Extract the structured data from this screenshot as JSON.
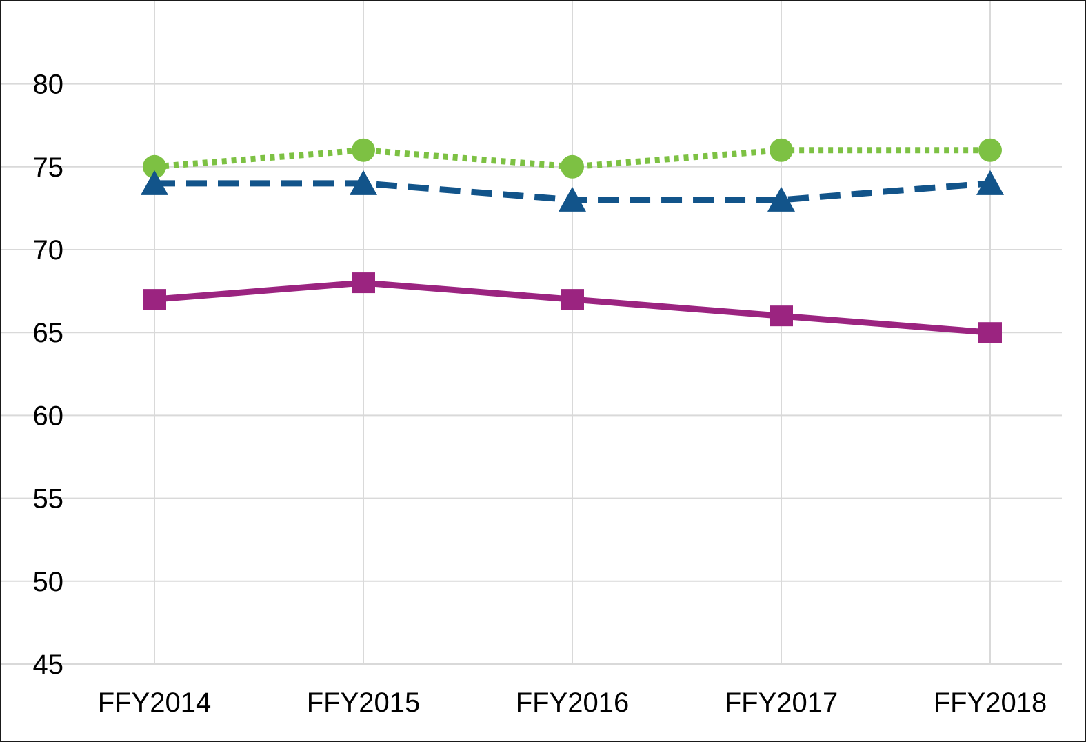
{
  "chart_data": {
    "type": "line",
    "title": "",
    "xlabel": "",
    "ylabel": "",
    "categories": [
      "FFY2014",
      "FFY2015",
      "FFY2016",
      "FFY2017",
      "FFY2018"
    ],
    "ylim": [
      45,
      83
    ],
    "yticks": [
      45,
      50,
      55,
      60,
      65,
      70,
      75,
      80
    ],
    "grid": true,
    "legend": "none",
    "series": [
      {
        "values": [
          75,
          76,
          75,
          76,
          76
        ],
        "color": "#7dc143",
        "line_style": "dotted",
        "marker": "circle"
      },
      {
        "values": [
          74,
          74,
          73,
          73,
          74
        ],
        "color": "#12548a",
        "line_style": "dashed",
        "marker": "triangle"
      },
      {
        "values": [
          67,
          68,
          67,
          66,
          65
        ],
        "color": "#9b2480",
        "line_style": "solid",
        "marker": "square"
      }
    ]
  }
}
